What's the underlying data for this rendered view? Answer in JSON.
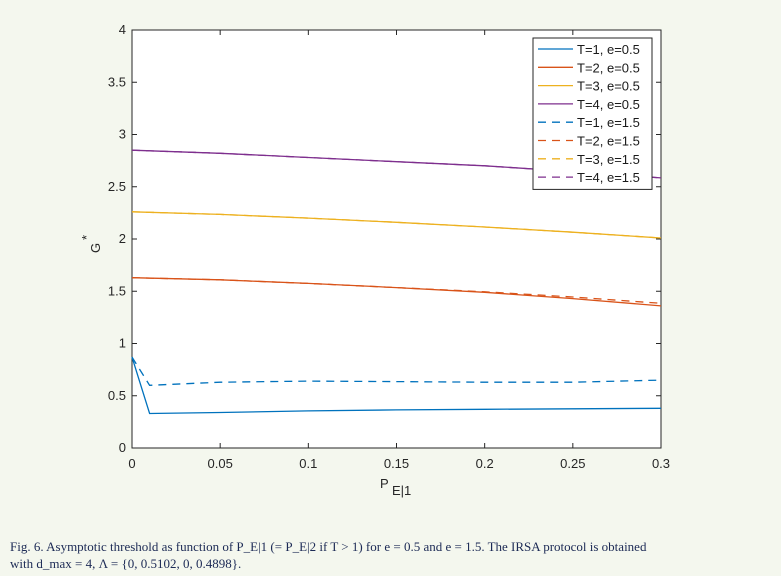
{
  "chart_data": {
    "type": "line",
    "xlabel": "P",
    "xlabel_sub": "E|1",
    "ylabel": "G",
    "ylabel_sup": "*",
    "xlim": [
      0,
      0.3
    ],
    "ylim": [
      0,
      4
    ],
    "x_ticks": [
      0,
      0.05,
      0.1,
      0.15,
      0.2,
      0.25,
      0.3
    ],
    "x_tick_labels": [
      "0",
      "0.05",
      "0.1",
      "0.15",
      "0.2",
      "0.25",
      "0.3"
    ],
    "y_ticks": [
      0,
      0.5,
      1,
      1.5,
      2,
      2.5,
      3,
      3.5,
      4
    ],
    "y_tick_labels": [
      "0",
      "0.5",
      "1",
      "1.5",
      "2",
      "2.5",
      "3",
      "3.5",
      "4"
    ],
    "grid": false,
    "legend_position": "top-right",
    "series": [
      {
        "name": "T=1, e=0.5",
        "color": "#0072bd",
        "dash": "solid",
        "x": [
          0,
          0.01,
          0.05,
          0.1,
          0.15,
          0.2,
          0.25,
          0.3
        ],
        "y": [
          0.87,
          0.33,
          0.34,
          0.355,
          0.365,
          0.37,
          0.375,
          0.38
        ]
      },
      {
        "name": "T=2, e=0.5",
        "color": "#d95319",
        "dash": "solid",
        "x": [
          0,
          0.05,
          0.1,
          0.15,
          0.2,
          0.25,
          0.3
        ],
        "y": [
          1.63,
          1.61,
          1.575,
          1.535,
          1.49,
          1.43,
          1.36
        ]
      },
      {
        "name": "T=3, e=0.5",
        "color": "#edb120",
        "dash": "solid",
        "x": [
          0,
          0.05,
          0.1,
          0.15,
          0.2,
          0.25,
          0.3
        ],
        "y": [
          2.26,
          2.235,
          2.2,
          2.16,
          2.115,
          2.065,
          2.01
        ]
      },
      {
        "name": "T=4, e=0.5",
        "color": "#7e2f8e",
        "dash": "solid",
        "x": [
          0,
          0.05,
          0.1,
          0.15,
          0.2,
          0.25,
          0.3
        ],
        "y": [
          2.85,
          2.82,
          2.78,
          2.74,
          2.7,
          2.645,
          2.585
        ]
      },
      {
        "name": "T=1, e=1.5",
        "color": "#0072bd",
        "dash": "dashed",
        "x": [
          0,
          0.01,
          0.05,
          0.1,
          0.15,
          0.2,
          0.25,
          0.3
        ],
        "y": [
          0.87,
          0.6,
          0.63,
          0.64,
          0.635,
          0.63,
          0.63,
          0.65
        ]
      },
      {
        "name": "T=2, e=1.5",
        "color": "#d95319",
        "dash": "dashed",
        "x": [
          0,
          0.05,
          0.1,
          0.15,
          0.2,
          0.25,
          0.3
        ],
        "y": [
          1.63,
          1.61,
          1.575,
          1.535,
          1.495,
          1.445,
          1.385
        ]
      },
      {
        "name": "T=3, e=1.5",
        "color": "#edb120",
        "dash": "dashed",
        "x": [
          0,
          0.05,
          0.1,
          0.15,
          0.2,
          0.25,
          0.3
        ],
        "y": [
          2.26,
          2.235,
          2.2,
          2.16,
          2.115,
          2.065,
          2.01
        ]
      },
      {
        "name": "T=4, e=1.5",
        "color": "#7e2f8e",
        "dash": "dashed",
        "x": [
          0,
          0.05,
          0.1,
          0.15,
          0.2,
          0.25,
          0.3
        ],
        "y": [
          2.85,
          2.82,
          2.78,
          2.74,
          2.7,
          2.645,
          2.585
        ]
      }
    ]
  },
  "caption": {
    "line1": "Fig. 6.   Asymptotic threshold as function of P_E|1 (= P_E|2 if T > 1) for e = 0.5 and e = 1.5. The IRSA protocol is obtained",
    "line2": "with d_max = 4, Λ = {0, 0.5102, 0, 0.4898}."
  }
}
